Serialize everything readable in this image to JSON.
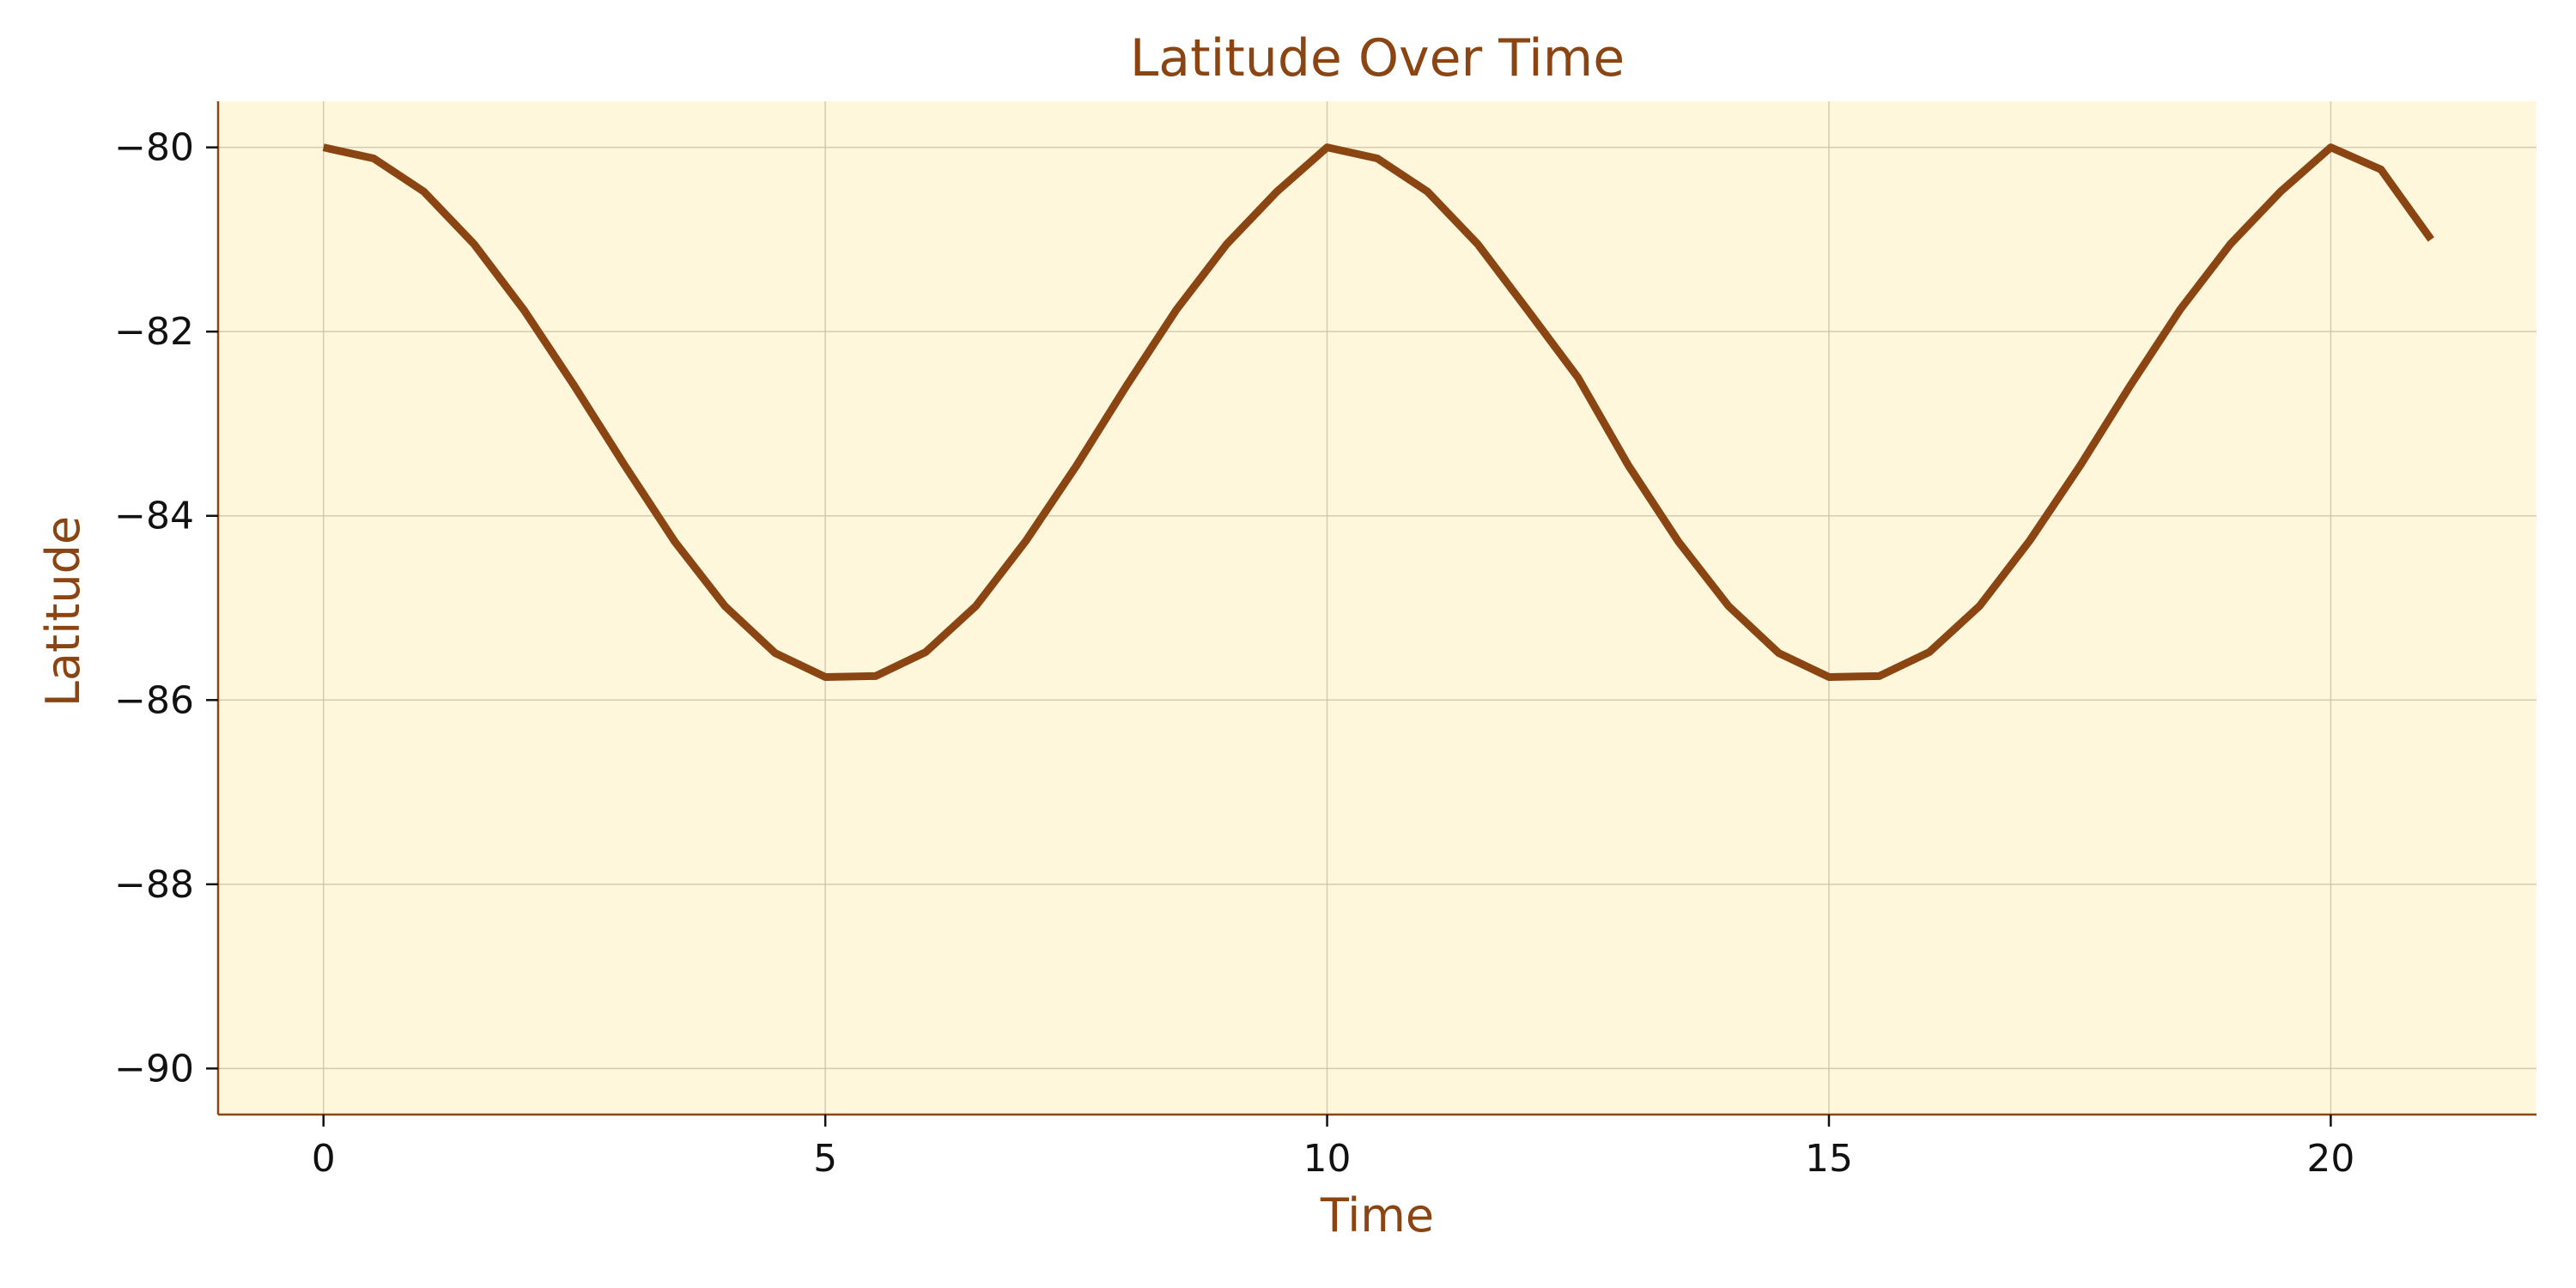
{
  "chart_data": {
    "type": "line",
    "title": "Latitude Over Time",
    "xlabel": "Time",
    "ylabel": "Latitude",
    "xlim": [
      -1.05,
      22.05
    ],
    "ylim": [
      -90.5,
      -79.5
    ],
    "x_ticks": [
      0,
      5,
      10,
      15,
      20
    ],
    "y_ticks": [
      -80,
      -82,
      -84,
      -86,
      -88,
      -90
    ],
    "x_tick_labels": [
      "0",
      "5",
      "10",
      "15",
      "20"
    ],
    "y_tick_labels": [
      "−80",
      "−82",
      "−84",
      "−86",
      "−88",
      "−90"
    ],
    "grid": true,
    "legend": false,
    "series": [
      {
        "x": [
          0,
          0.5,
          1,
          1.5,
          2,
          2.5,
          3,
          3.5,
          4,
          4.5,
          5,
          5.5,
          6,
          6.5,
          7,
          7.5,
          8,
          8.5,
          9,
          9.5,
          10,
          10.5,
          11,
          11.5,
          12,
          12.5,
          13,
          13.5,
          14,
          14.5,
          15,
          15.5,
          16,
          16.5,
          17,
          17.5,
          18,
          18.5,
          19,
          19.5,
          20,
          20.5,
          21
        ],
        "y": [
          -80,
          -80.12,
          -80.48,
          -81.05,
          -81.77,
          -82.59,
          -83.45,
          -84.28,
          -84.98,
          -85.49,
          -85.75,
          -85.74,
          -85.48,
          -84.98,
          -84.27,
          -83.46,
          -82.59,
          -81.76,
          -81.05,
          -80.48,
          -80,
          -80.12,
          -80.48,
          -81.05,
          -81.77,
          -82.5,
          -83.45,
          -84.28,
          -84.98,
          -85.49,
          -85.75,
          -85.74,
          -85.48,
          -84.98,
          -84.27,
          -83.46,
          -82.59,
          -81.76,
          -81.05,
          -80.48,
          -80,
          -80.24,
          -81
        ]
      }
    ],
    "colors": {
      "line": "#8b4513",
      "plot_background": "#fff7dc",
      "axes": "#8b4513",
      "text_accent": "#8b4513",
      "grid": "#c8c0a8"
    }
  }
}
